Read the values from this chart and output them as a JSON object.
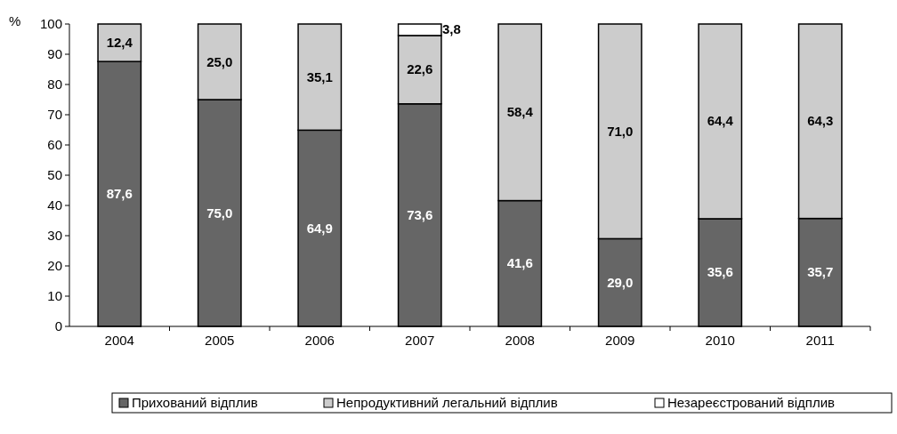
{
  "chart_data": {
    "type": "bar",
    "stacked": true,
    "ylabel": "%",
    "categories": [
      "2004",
      "2005",
      "2006",
      "2007",
      "2008",
      "2009",
      "2010",
      "2011"
    ],
    "ylim": [
      0,
      100
    ],
    "yticks": [
      0,
      10,
      20,
      30,
      40,
      50,
      60,
      70,
      80,
      90,
      100
    ],
    "grid": false,
    "legend": "bottom",
    "series": [
      {
        "name": "Прихований відплив",
        "color": "#666666",
        "values": [
          87.6,
          75.0,
          64.9,
          73.6,
          41.6,
          29.0,
          35.6,
          35.7
        ],
        "value_labels": [
          "87,6",
          "75,0",
          "64,9",
          "73,6",
          "41,6",
          "29,0",
          "35,6",
          "35,7"
        ]
      },
      {
        "name": "Непродуктивний легальний відплив",
        "color": "#cccccc",
        "values": [
          12.4,
          25.0,
          35.1,
          22.6,
          58.4,
          71.0,
          64.4,
          64.3
        ],
        "value_labels": [
          "12,4",
          "25,0",
          "35,1",
          "22,6",
          "58,4",
          "71,0",
          "64,4",
          "64,3"
        ]
      },
      {
        "name": "Незареєстрований відплив",
        "color": "#ffffff",
        "values": [
          null,
          null,
          null,
          3.8,
          null,
          null,
          null,
          null
        ],
        "value_labels": [
          null,
          null,
          null,
          "3,8",
          null,
          null,
          null,
          null
        ]
      }
    ]
  }
}
